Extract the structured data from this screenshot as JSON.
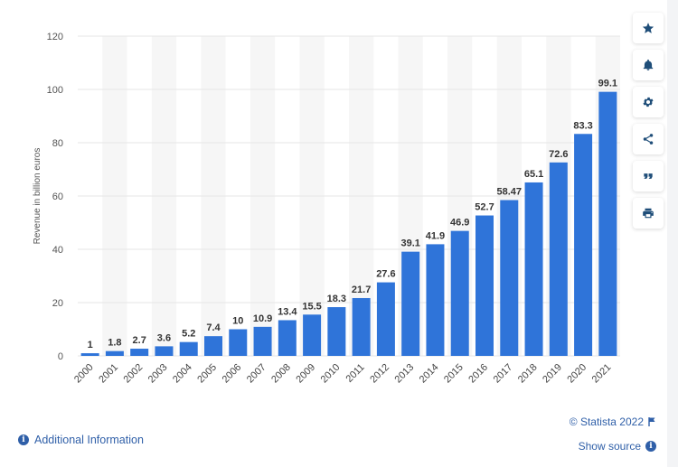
{
  "chart_data": {
    "type": "bar",
    "categories": [
      "2000",
      "2001",
      "2002",
      "2003",
      "2004",
      "2005",
      "2006",
      "2007",
      "2008",
      "2009",
      "2010",
      "2011",
      "2012",
      "2013",
      "2014",
      "2015",
      "2016",
      "2017",
      "2018",
      "2019",
      "2020",
      "2021"
    ],
    "values": [
      1,
      1.8,
      2.7,
      3.6,
      5.2,
      7.4,
      10,
      10.9,
      13.4,
      15.5,
      18.3,
      21.7,
      27.6,
      39.1,
      41.9,
      46.9,
      52.7,
      58.47,
      65.1,
      72.6,
      83.3,
      99.1
    ],
    "value_labels": [
      "1",
      "1.8",
      "2.7",
      "3.6",
      "5.2",
      "7.4",
      "10",
      "10.9",
      "13.4",
      "15.5",
      "18.3",
      "21.7",
      "27.6",
      "39.1",
      "41.9",
      "46.9",
      "52.7",
      "58.47",
      "65.1",
      "72.6",
      "83.3",
      "99.1"
    ],
    "ylabel": "Revenue in billion euros",
    "yticks": [
      0,
      20,
      40,
      60,
      80,
      100,
      120
    ],
    "ylim": [
      0,
      120
    ],
    "grid": true,
    "legend": "none"
  },
  "colors": {
    "bar": "#2f74d9",
    "grid": "#e6e6e6",
    "stripe": "#f6f6f6",
    "link": "#2f5fa8"
  },
  "toolbar": {
    "buttons": [
      "star-icon",
      "bell-icon",
      "gear-icon",
      "share-icon",
      "quote-icon",
      "print-icon"
    ]
  },
  "footer": {
    "copyright": "© Statista 2022",
    "show_source": "Show source",
    "additional_info": "Additional Information"
  }
}
